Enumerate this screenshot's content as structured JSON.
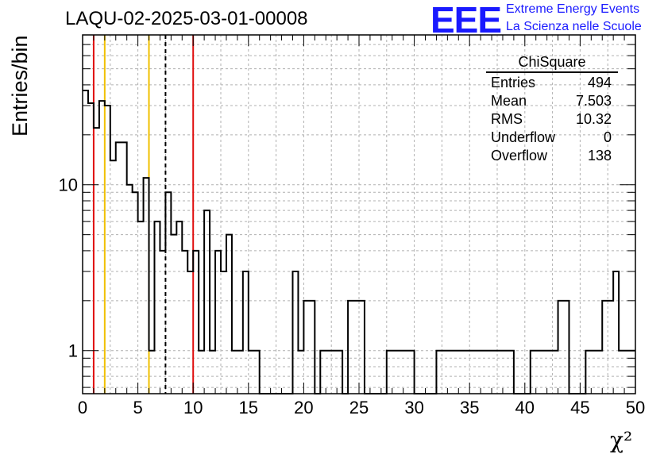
{
  "header": {
    "title": "LAQU-02-2025-03-01-00008",
    "logo_text": "EEE",
    "logo_line1": "Extreme Energy Events",
    "logo_line2": "La Scienza nelle Scuole"
  },
  "stats_box": {
    "title": "ChiSquare",
    "rows": [
      {
        "label": "Entries",
        "value": "494"
      },
      {
        "label": "Mean",
        "value": "7.503"
      },
      {
        "label": "RMS",
        "value": "10.32"
      },
      {
        "label": "Underflow",
        "value": "0"
      },
      {
        "label": "Overflow",
        "value": "138"
      }
    ]
  },
  "colors": {
    "histogram": "#000000",
    "red_line": "#e01010",
    "yellow_line": "#f0c000",
    "dashed_line": "#000000",
    "grid": "#b0b0b0"
  },
  "chart_data": {
    "type": "bar",
    "style": "step-histogram",
    "xlabel": "χ²",
    "ylabel": "Entries/bin",
    "xlim": [
      0,
      50
    ],
    "ylim": [
      0.55,
      80
    ],
    "log_y": true,
    "grid": true,
    "bin_width": 0.5,
    "x_ticks": [
      0,
      5,
      10,
      15,
      20,
      25,
      30,
      35,
      40,
      45,
      50
    ],
    "y_ticks": [
      {
        "value": 1,
        "label": "1"
      },
      {
        "value": 10,
        "label": "10"
      }
    ],
    "values": [
      37,
      31,
      22,
      32,
      30,
      14,
      18,
      18,
      10,
      9,
      6,
      11,
      1,
      6,
      4,
      9,
      5,
      6,
      4,
      3,
      4,
      1,
      7,
      1,
      4,
      3,
      5,
      1,
      1,
      3,
      1,
      1,
      0,
      0,
      0,
      0,
      0,
      0,
      3,
      1,
      2,
      2,
      0,
      1,
      1,
      1,
      1,
      0,
      2,
      2,
      2,
      0,
      0,
      0,
      0,
      1,
      1,
      1,
      1,
      1,
      0,
      0,
      0,
      0,
      1,
      1,
      1,
      1,
      1,
      1,
      1,
      1,
      1,
      1,
      1,
      1,
      1,
      1,
      0,
      0,
      0,
      1,
      1,
      1,
      1,
      1,
      2,
      2,
      0,
      0,
      0,
      1,
      1,
      1,
      2,
      2,
      3,
      1,
      1,
      1
    ],
    "vertical_lines": [
      {
        "x": 1.0,
        "style": "red"
      },
      {
        "x": 2.0,
        "style": "yellow"
      },
      {
        "x": 6.0,
        "style": "yellow"
      },
      {
        "x": 7.5,
        "style": "dashed"
      },
      {
        "x": 10.0,
        "style": "red"
      }
    ]
  }
}
